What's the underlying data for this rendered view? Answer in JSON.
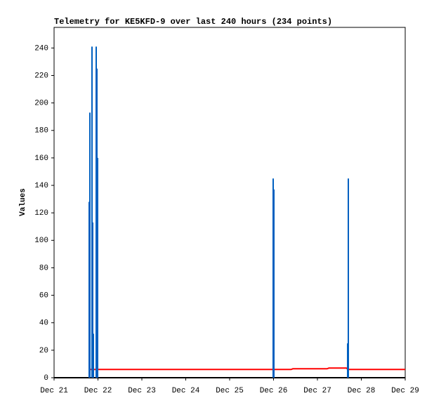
{
  "chart_data": {
    "type": "line",
    "title": "Telemetry for KE5KFD-9 over last 240 hours (234 points)",
    "y_label": "Values",
    "xlim": [
      0,
      8
    ],
    "xticks": [
      {
        "value": 0,
        "label": "Dec 21"
      },
      {
        "value": 1,
        "label": "Dec 22"
      },
      {
        "value": 2,
        "label": "Dec 23"
      },
      {
        "value": 3,
        "label": "Dec 24"
      },
      {
        "value": 4,
        "label": "Dec 25"
      },
      {
        "value": 5,
        "label": "Dec 26"
      },
      {
        "value": 6,
        "label": "Dec 27"
      },
      {
        "value": 7,
        "label": "Dec 28"
      },
      {
        "value": 8,
        "label": "Dec 29"
      }
    ],
    "ylim": [
      0,
      255
    ],
    "yticks": [
      0,
      20,
      40,
      60,
      80,
      100,
      120,
      140,
      160,
      180,
      200,
      220,
      240
    ],
    "series": [
      {
        "color": "#000000",
        "style": "line",
        "x": [
          0,
          8
        ],
        "values": [
          0,
          0
        ]
      },
      {
        "color": "#ff0000",
        "style": "line",
        "x": [
          0.8,
          5.4,
          5.44,
          6.22,
          6.26,
          6.66,
          6.7,
          8
        ],
        "values": [
          6,
          6,
          6.5,
          6.5,
          7,
          7,
          6,
          6
        ]
      },
      {
        "color": "#0060c0",
        "style": "impulse",
        "x": [
          0.8,
          0.816,
          0.864,
          0.88,
          0.896,
          0.96,
          0.976,
          0.992,
          4.992,
          5.008,
          6.688,
          6.704
        ],
        "values": [
          128,
          193,
          241,
          113,
          32,
          241,
          225,
          160,
          145,
          137,
          25,
          145
        ]
      }
    ]
  }
}
